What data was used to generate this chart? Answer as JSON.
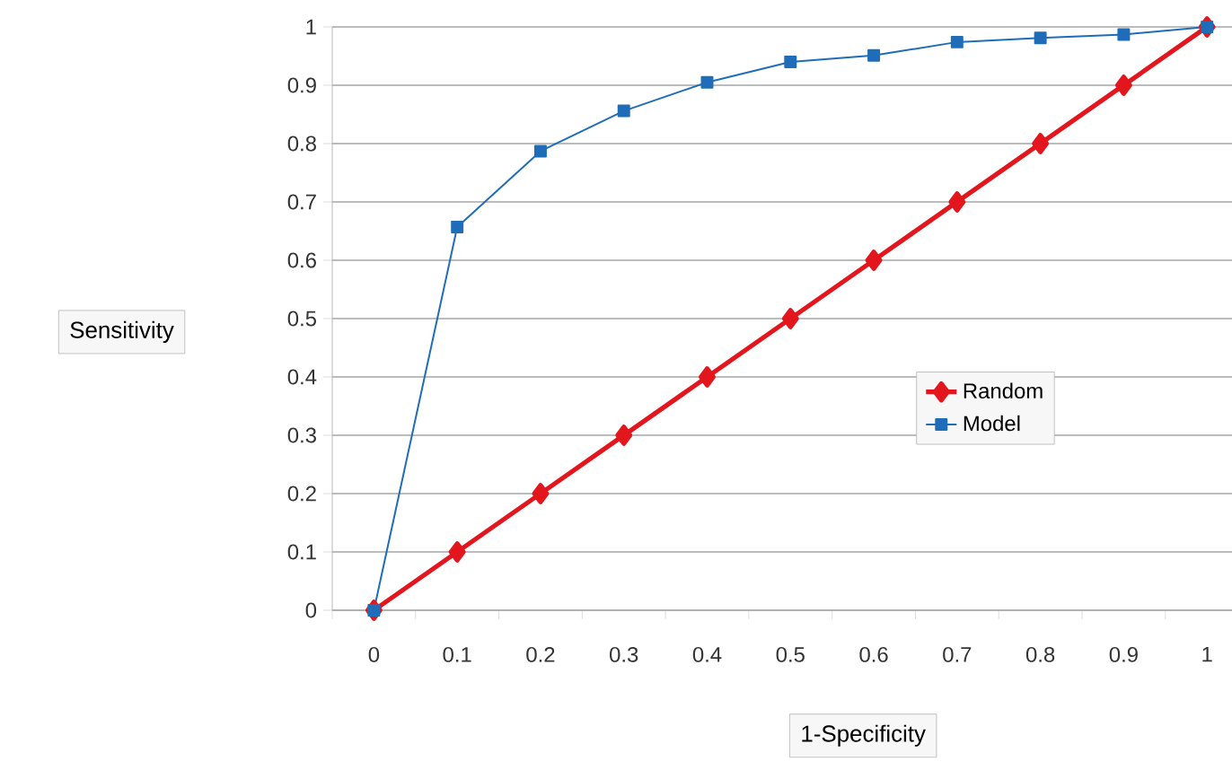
{
  "chart_data": {
    "type": "line",
    "xlabel": "1-Specificity",
    "ylabel": "Sensitivity",
    "categories": [
      "0",
      "0.1",
      "0.2",
      "0.3",
      "0.4",
      "0.5",
      "0.6",
      "0.7",
      "0.8",
      "0.9",
      "1"
    ],
    "series": [
      {
        "name": "Random",
        "color": "#e3161d",
        "marker": "diamond",
        "values": [
          0,
          0.1,
          0.2,
          0.3,
          0.4,
          0.5,
          0.6,
          0.7,
          0.8,
          0.9,
          1
        ]
      },
      {
        "name": "Model",
        "color": "#1f6db8",
        "marker": "square",
        "values": [
          0,
          0.657,
          0.787,
          0.856,
          0.905,
          0.94,
          0.951,
          0.974,
          0.981,
          0.987,
          1
        ]
      }
    ],
    "ylim": [
      0,
      1
    ],
    "yticks": [
      0,
      0.1,
      0.2,
      0.3,
      0.4,
      0.5,
      0.6,
      0.7,
      0.8,
      0.9,
      1
    ],
    "grid": "y",
    "legend": "right"
  }
}
